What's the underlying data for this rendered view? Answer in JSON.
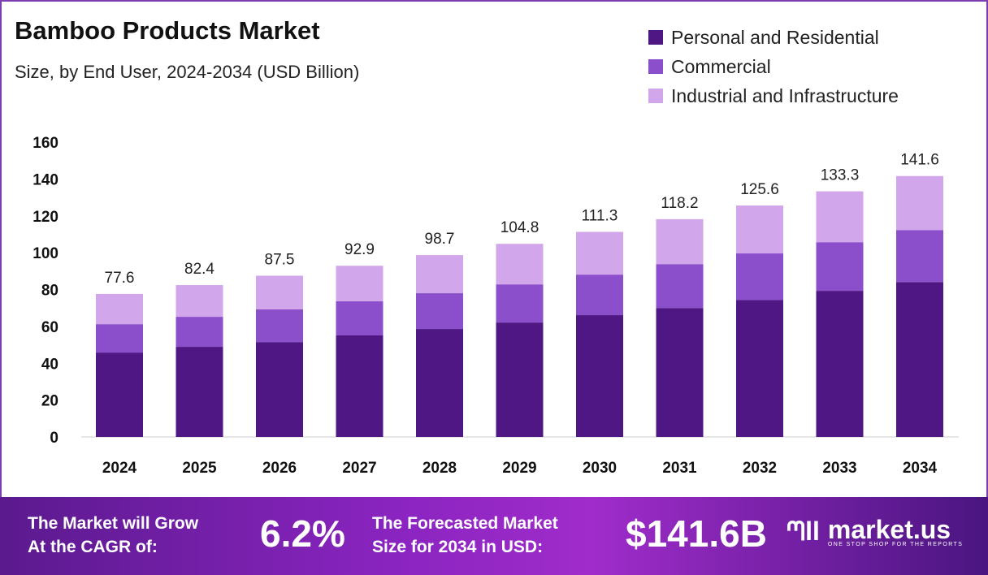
{
  "chart_data": {
    "type": "bar",
    "stacked": true,
    "title": "Bamboo Products Market",
    "subtitle": "Size, by End User, 2024-2034 (USD Billion)",
    "categories": [
      "2024",
      "2025",
      "2026",
      "2027",
      "2028",
      "2029",
      "2030",
      "2031",
      "2032",
      "2033",
      "2034"
    ],
    "series": [
      {
        "name": "Personal and Residential",
        "color": "#4e1784",
        "values": [
          45.8,
          48.9,
          51.5,
          55.1,
          58.6,
          62.1,
          66.1,
          70.0,
          74.4,
          79.3,
          84.1
        ]
      },
      {
        "name": "Commercial",
        "color": "#8c4fcb",
        "values": [
          15.4,
          16.3,
          17.7,
          18.5,
          19.4,
          20.7,
          22.0,
          23.8,
          25.2,
          26.4,
          28.2
        ]
      },
      {
        "name": "Industrial and Infrastructure",
        "color": "#d2a6ea",
        "values": [
          16.4,
          17.2,
          18.3,
          19.3,
          20.7,
          22.0,
          23.2,
          24.4,
          26.0,
          27.6,
          29.3
        ]
      }
    ],
    "totals": [
      "77.6",
      "82.4",
      "87.5",
      "92.9",
      "98.7",
      "104.8",
      "111.3",
      "118.2",
      "125.6",
      "133.3",
      "141.6"
    ],
    "yticks": [
      "0",
      "20",
      "40",
      "60",
      "80",
      "100",
      "120",
      "140",
      "160"
    ],
    "ylim": [
      0,
      160
    ],
    "grid": false,
    "legend": "top-right"
  },
  "banner": {
    "cagr_label_1": "The Market will Grow",
    "cagr_label_2": "At the CAGR of:",
    "cagr_value": "6.2%",
    "forecast_label_1": "The Forecasted Market",
    "forecast_label_2": "Size for 2034 in USD:",
    "forecast_value": "$141.6B",
    "brand": "market.us",
    "tagline": "ONE STOP SHOP FOR THE REPORTS"
  }
}
